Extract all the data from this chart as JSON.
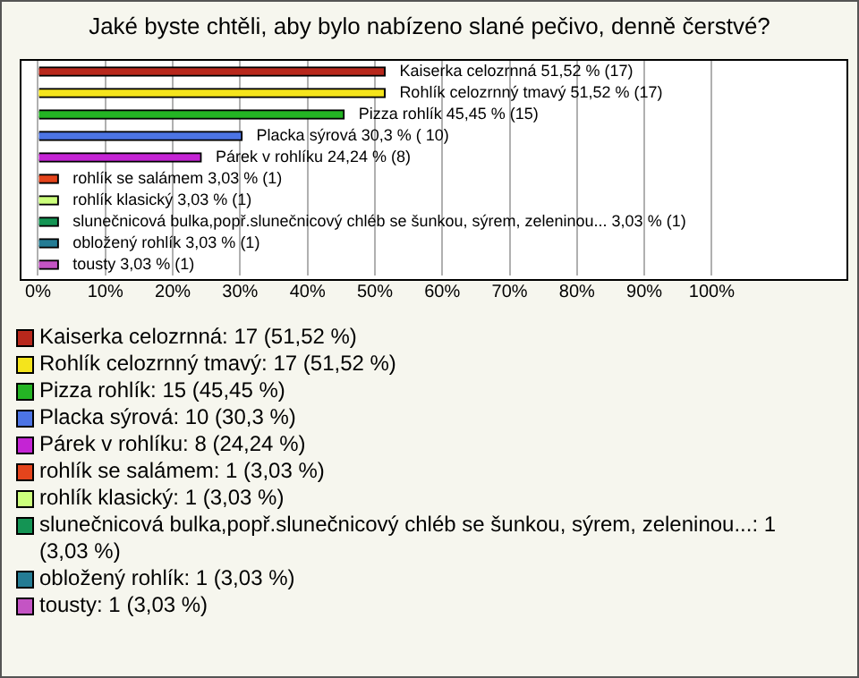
{
  "chart_data": {
    "type": "bar",
    "orientation": "horizontal",
    "title": "Jaké byste chtěli, aby bylo nabízeno slané pečivo, denně čerstvé?",
    "categories": [
      "Kaiserka celozrnná",
      "Rohlík celozrnný tmavý",
      "Pizza rohlík",
      "Placka sýrová",
      "Párek v rohlíku",
      "rohlík se salámem",
      "rohlík klasický",
      "slunečnicová bulka,popř.slunečnicový chléb se šunkou, sýrem, zeleninou...",
      "obložený rohlík",
      "tousty"
    ],
    "values": [
      51.52,
      51.52,
      45.45,
      30.3,
      24.24,
      3.03,
      3.03,
      3.03,
      3.03,
      3.03
    ],
    "colors": [
      "#b8281c",
      "#f4e41c",
      "#24b424",
      "#4c74e4",
      "#c424d4",
      "#e4441c",
      "#ccff7c",
      "#149454",
      "#247c94",
      "#c454c4"
    ],
    "value_labels": [
      "51,52 % (17)",
      "51,52 % (17)",
      "45,45 % (15)",
      "30,3 % ( 10)",
      "24,24 % (8)",
      "3,03 % (1)",
      "3,03 % (1)",
      "3,03 % (1)",
      "3,03 % (1)",
      "3,03 % (1)"
    ],
    "annotations": [
      "Kaiserka celozrnná: 17 (51,52 %)",
      "Rohlík celozrnný tmavý: 17 (51,52 %)",
      "Pizza rohlík: 15 (45,45 %)",
      "Placka sýrová: 10 (30,3 %)",
      "Párek v rohlíku: 8 (24,24 %)",
      "rohlík se salámem: 1 (3,03 %)",
      "rohlík klasický: 1 (3,03 %)",
      "slunečnicová bulka,popř.slunečnicový chléb se šunkou, sýrem, zeleninou...: 1 (3,03 %)",
      "obložený rohlík: 1 (3,03 %)",
      "tousty: 1 (3,03 %)"
    ],
    "xlim": [
      0,
      120
    ],
    "xticks": [
      {
        "value": 0,
        "label": "0%"
      },
      {
        "value": 10,
        "label": "10%"
      },
      {
        "value": 20,
        "label": "20%"
      },
      {
        "value": 30,
        "label": "30%"
      },
      {
        "value": 40,
        "label": "40%"
      },
      {
        "value": 50,
        "label": "50%"
      },
      {
        "value": 60,
        "label": "60%"
      },
      {
        "value": 70,
        "label": "70%"
      },
      {
        "value": 80,
        "label": "80%"
      },
      {
        "value": 90,
        "label": "90%"
      },
      {
        "value": 100,
        "label": "100%"
      }
    ],
    "grid": "x",
    "tick_labels": "x"
  }
}
